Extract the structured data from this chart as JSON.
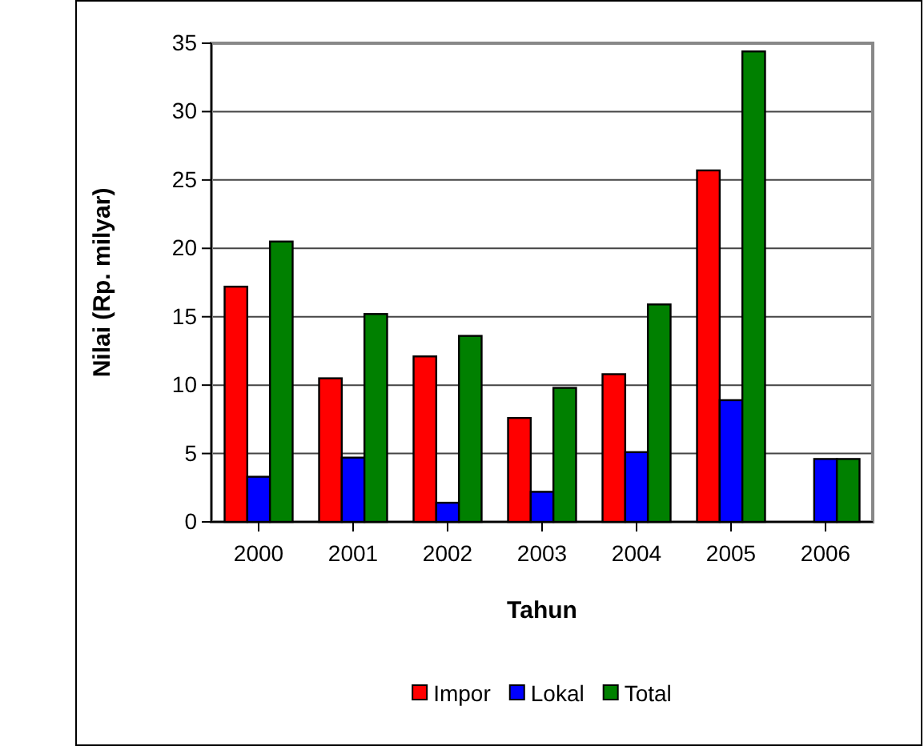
{
  "chart_data": {
    "type": "bar",
    "xlabel": "Tahun",
    "ylabel": "Nilai (Rp. milyar)",
    "categories": [
      "2000",
      "2001",
      "2002",
      "2003",
      "2004",
      "2005",
      "2006"
    ],
    "series": [
      {
        "name": "Impor",
        "color": "#ff0000",
        "values": [
          17.2,
          10.5,
          12.1,
          7.6,
          10.8,
          25.7,
          0
        ]
      },
      {
        "name": "Lokal",
        "color": "#0000ff",
        "values": [
          3.3,
          4.7,
          1.4,
          2.2,
          5.1,
          8.9,
          4.6
        ]
      },
      {
        "name": "Total",
        "color": "#008000",
        "values": [
          20.5,
          15.2,
          13.6,
          9.8,
          15.9,
          34.4,
          4.6
        ]
      }
    ],
    "ylim": [
      0,
      35
    ],
    "yticks": [
      0,
      5,
      10,
      15,
      20,
      25,
      30,
      35
    ],
    "grid": "y",
    "legend": "bottom"
  }
}
